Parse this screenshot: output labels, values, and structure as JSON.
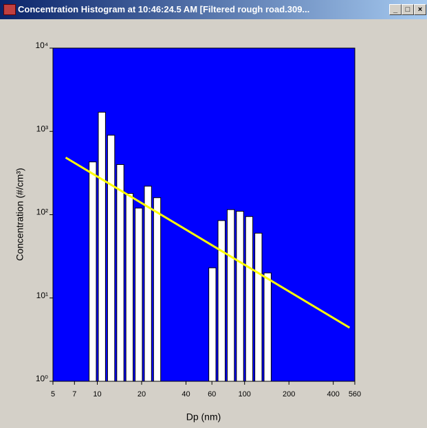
{
  "window_title": "Concentration Histogram at 10:46:24.5 AM  [Filtered rough road.309...",
  "chart_data": {
    "type": "histogram",
    "x_label": "Dp (nm)",
    "y_label": "Concentration (#/cm³)",
    "bins": [
      8.66,
      10,
      11.55,
      13.34,
      15.4,
      17.78,
      20.54,
      23.71,
      27.38,
      31.62,
      36.52,
      42.17,
      48.7,
      56.23,
      64.94,
      74.99,
      86.6,
      100,
      115.48,
      133.35,
      154
    ],
    "values": [
      430,
      1700,
      900,
      400,
      180,
      120,
      220,
      160,
      0,
      0,
      0,
      0,
      0,
      23,
      85,
      115,
      110,
      95,
      60,
      20
    ],
    "color": "#ffffff",
    "line": {
      "x": [
        6.1,
        516
      ],
      "values": [
        485,
        4.4
      ],
      "color": "#ffff00"
    },
    "xlim": [
      5,
      560
    ],
    "ylim": [
      1,
      10000
    ],
    "log_x": true,
    "log_y": true,
    "xticks": [
      5,
      7,
      10,
      20,
      40,
      60,
      100,
      200,
      400,
      560
    ],
    "yticks": [
      {
        "value": 1,
        "label": "10⁰"
      },
      {
        "value": 10,
        "label": "10¹"
      },
      {
        "value": 100,
        "label": "10²"
      },
      {
        "value": 1000,
        "label": "10³"
      },
      {
        "value": 10000,
        "label": "10⁴"
      }
    ],
    "background": "#0000ff"
  }
}
